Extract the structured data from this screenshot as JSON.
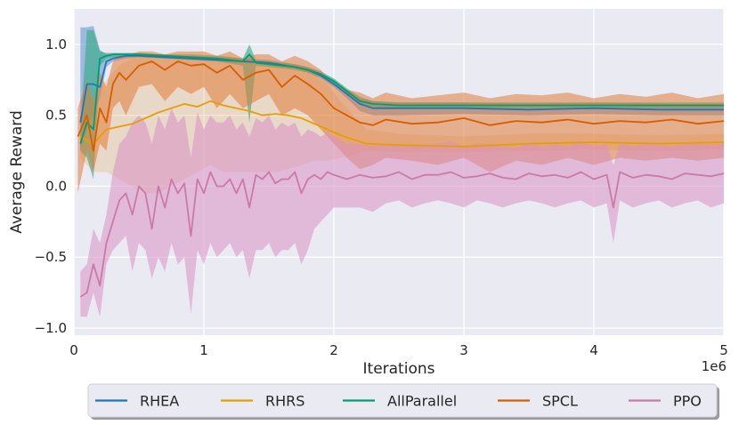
{
  "chart_data": {
    "type": "line",
    "title": "",
    "xlabel": "Iterations",
    "ylabel": "Average Reward",
    "x_offset_text": "1e6",
    "xlim": [
      0,
      5000000
    ],
    "ylim": [
      -1.05,
      1.25
    ],
    "xticks": [
      0,
      1000000,
      2000000,
      3000000,
      4000000,
      5000000
    ],
    "xtick_labels": [
      "0",
      "1",
      "2",
      "3",
      "4",
      "5"
    ],
    "yticks": [
      -1.0,
      -0.5,
      0.0,
      0.5,
      1.0
    ],
    "ytick_labels": [
      "−1.0",
      "−0.5",
      "0.0",
      "0.5",
      "1.0"
    ],
    "grid": true,
    "legend_position": "bottom-center",
    "series": [
      {
        "name": "RHEA",
        "color": "#1f77b4",
        "band_color": "#5b8fd0",
        "band_opacity": 0.55,
        "x": [
          50000,
          100000,
          150000,
          200000,
          250000,
          300000,
          400000,
          500000,
          700000,
          900000,
          1100000,
          1300000,
          1500000,
          1700000,
          1800000,
          1900000,
          2000000,
          2100000,
          2200000,
          2300000,
          2500000,
          3000000,
          3500000,
          4000000,
          4500000,
          5000000
        ],
        "values": [
          0.45,
          0.72,
          0.72,
          0.7,
          0.88,
          0.9,
          0.92,
          0.92,
          0.91,
          0.9,
          0.89,
          0.88,
          0.87,
          0.84,
          0.82,
          0.78,
          0.72,
          0.65,
          0.58,
          0.55,
          0.55,
          0.55,
          0.54,
          0.55,
          0.54,
          0.54
        ],
        "lower": [
          0.25,
          0.4,
          0.5,
          0.62,
          0.84,
          0.88,
          0.9,
          0.91,
          0.9,
          0.89,
          0.88,
          0.87,
          0.86,
          0.83,
          0.8,
          0.76,
          0.7,
          0.62,
          0.53,
          0.5,
          0.5,
          0.51,
          0.5,
          0.51,
          0.5,
          0.5
        ],
        "upper": [
          1.12,
          1.12,
          1.13,
          0.96,
          0.93,
          0.93,
          0.93,
          0.93,
          0.92,
          0.92,
          0.91,
          0.9,
          0.89,
          0.86,
          0.84,
          0.8,
          0.75,
          0.68,
          0.62,
          0.6,
          0.59,
          0.59,
          0.58,
          0.59,
          0.58,
          0.58
        ]
      },
      {
        "name": "RHRS",
        "color": "#e69f00",
        "band_color": "#e6b87a",
        "band_opacity": 0.35,
        "x": [
          50000,
          150000,
          250000,
          350000,
          450000,
          550000,
          650000,
          750000,
          850000,
          950000,
          1050000,
          1150000,
          1250000,
          1350000,
          1450000,
          1550000,
          1650000,
          1750000,
          1850000,
          1950000,
          2050000,
          2150000,
          2250000,
          2500000,
          3000000,
          3500000,
          4000000,
          4500000,
          5000000
        ],
        "values": [
          0.35,
          0.3,
          0.4,
          0.42,
          0.44,
          0.48,
          0.52,
          0.55,
          0.58,
          0.56,
          0.6,
          0.57,
          0.55,
          0.53,
          0.5,
          0.51,
          0.5,
          0.48,
          0.44,
          0.4,
          0.36,
          0.33,
          0.3,
          0.29,
          0.28,
          0.3,
          0.31,
          0.3,
          0.31
        ],
        "lower": [
          0.2,
          0.1,
          0.1,
          0.05,
          0.0,
          -0.05,
          -0.05,
          0.0,
          0.05,
          0.1,
          0.15,
          0.1,
          0.1,
          0.1,
          0.1,
          0.1,
          0.12,
          0.15,
          0.18,
          0.18,
          0.2,
          0.22,
          0.25,
          0.24,
          0.24,
          0.25,
          0.26,
          0.25,
          0.26
        ],
        "upper": [
          0.5,
          0.6,
          0.75,
          0.85,
          0.9,
          0.93,
          0.92,
          0.92,
          0.92,
          0.92,
          0.92,
          0.92,
          0.91,
          0.9,
          0.89,
          0.88,
          0.86,
          0.84,
          0.78,
          0.72,
          0.6,
          0.5,
          0.4,
          0.37,
          0.35,
          0.37,
          0.37,
          0.36,
          0.37
        ]
      },
      {
        "name": "AllParallel",
        "color": "#009e73",
        "band_color": "#33aa80",
        "band_opacity": 0.6,
        "x": [
          50000,
          100000,
          150000,
          200000,
          250000,
          300000,
          400000,
          500000,
          700000,
          900000,
          1100000,
          1300000,
          1350000,
          1400000,
          1500000,
          1700000,
          1800000,
          1900000,
          2000000,
          2100000,
          2200000,
          2300000,
          2500000,
          3000000,
          3500000,
          4000000,
          4500000,
          5000000
        ],
        "values": [
          0.3,
          0.45,
          0.4,
          0.9,
          0.92,
          0.93,
          0.93,
          0.93,
          0.92,
          0.91,
          0.9,
          0.88,
          0.93,
          0.87,
          0.86,
          0.84,
          0.82,
          0.79,
          0.74,
          0.67,
          0.6,
          0.58,
          0.57,
          0.57,
          0.57,
          0.57,
          0.57,
          0.57
        ],
        "lower": [
          0.25,
          0.2,
          0.05,
          0.85,
          0.9,
          0.91,
          0.91,
          0.91,
          0.9,
          0.89,
          0.88,
          0.85,
          0.45,
          0.85,
          0.84,
          0.82,
          0.8,
          0.77,
          0.72,
          0.65,
          0.58,
          0.56,
          0.55,
          0.55,
          0.55,
          0.55,
          0.55,
          0.55
        ],
        "upper": [
          0.4,
          1.1,
          1.1,
          0.95,
          0.94,
          0.94,
          0.94,
          0.94,
          0.93,
          0.93,
          0.92,
          0.9,
          1.0,
          0.89,
          0.88,
          0.86,
          0.84,
          0.81,
          0.76,
          0.69,
          0.63,
          0.6,
          0.59,
          0.59,
          0.59,
          0.59,
          0.59,
          0.59
        ]
      },
      {
        "name": "SPCL",
        "color": "#d55e00",
        "band_color": "#e07b39",
        "band_opacity": 0.55,
        "x": [
          30000,
          100000,
          150000,
          200000,
          250000,
          300000,
          350000,
          400000,
          500000,
          600000,
          700000,
          800000,
          900000,
          1000000,
          1100000,
          1200000,
          1300000,
          1400000,
          1500000,
          1600000,
          1700000,
          1800000,
          1900000,
          2000000,
          2100000,
          2200000,
          2300000,
          2400000,
          2600000,
          2800000,
          3000000,
          3200000,
          3400000,
          3600000,
          3800000,
          4000000,
          4200000,
          4400000,
          4600000,
          4800000,
          5000000
        ],
        "values": [
          0.35,
          0.5,
          0.25,
          0.55,
          0.45,
          0.72,
          0.8,
          0.75,
          0.85,
          0.88,
          0.82,
          0.88,
          0.85,
          0.86,
          0.8,
          0.85,
          0.75,
          0.8,
          0.82,
          0.7,
          0.78,
          0.72,
          0.65,
          0.55,
          0.5,
          0.45,
          0.43,
          0.47,
          0.44,
          0.45,
          0.48,
          0.43,
          0.46,
          0.45,
          0.47,
          0.44,
          0.46,
          0.45,
          0.47,
          0.44,
          0.46
        ],
        "lower": [
          -0.05,
          0.25,
          0.1,
          0.3,
          0.25,
          0.55,
          0.6,
          0.5,
          0.7,
          0.72,
          0.6,
          0.7,
          0.65,
          0.7,
          0.55,
          0.65,
          0.55,
          0.6,
          0.65,
          0.5,
          0.55,
          0.5,
          0.4,
          0.3,
          0.2,
          0.12,
          0.15,
          0.2,
          0.18,
          0.15,
          0.2,
          0.1,
          0.18,
          0.15,
          0.2,
          0.15,
          0.2,
          0.18,
          0.2,
          0.18,
          0.2
        ],
        "upper": [
          0.55,
          0.75,
          0.6,
          0.8,
          0.7,
          0.88,
          0.93,
          0.92,
          0.95,
          0.95,
          0.93,
          0.95,
          0.95,
          0.95,
          0.92,
          0.95,
          0.9,
          0.93,
          0.93,
          0.88,
          0.92,
          0.88,
          0.82,
          0.72,
          0.68,
          0.66,
          0.62,
          0.66,
          0.62,
          0.64,
          0.66,
          0.62,
          0.65,
          0.64,
          0.66,
          0.62,
          0.65,
          0.63,
          0.66,
          0.62,
          0.65
        ]
      },
      {
        "name": "PPO",
        "color": "#cc79a7",
        "band_color": "#d88fc4",
        "band_opacity": 0.55,
        "x": [
          50000,
          100000,
          150000,
          200000,
          250000,
          300000,
          350000,
          400000,
          450000,
          500000,
          550000,
          600000,
          650000,
          700000,
          750000,
          800000,
          850000,
          900000,
          950000,
          1000000,
          1050000,
          1100000,
          1150000,
          1200000,
          1250000,
          1300000,
          1350000,
          1400000,
          1450000,
          1500000,
          1550000,
          1600000,
          1650000,
          1700000,
          1750000,
          1800000,
          1850000,
          1900000,
          1950000,
          2000000,
          2100000,
          2200000,
          2300000,
          2400000,
          2500000,
          2600000,
          2700000,
          2800000,
          2900000,
          3000000,
          3100000,
          3200000,
          3300000,
          3400000,
          3500000,
          3600000,
          3700000,
          3800000,
          3900000,
          4000000,
          4100000,
          4150000,
          4200000,
          4300000,
          4400000,
          4500000,
          4600000,
          4700000,
          4800000,
          4900000,
          5000000
        ],
        "values": [
          -0.78,
          -0.75,
          -0.55,
          -0.7,
          -0.4,
          -0.25,
          -0.1,
          -0.05,
          -0.2,
          0.0,
          -0.05,
          -0.3,
          0.0,
          -0.15,
          0.05,
          -0.05,
          0.02,
          -0.35,
          0.05,
          -0.05,
          0.1,
          0.0,
          0.0,
          0.05,
          -0.05,
          0.05,
          -0.15,
          0.08,
          0.05,
          0.1,
          0.02,
          0.05,
          0.05,
          0.1,
          -0.05,
          0.05,
          0.08,
          0.05,
          0.1,
          0.08,
          0.05,
          0.08,
          0.06,
          0.07,
          0.1,
          0.05,
          0.08,
          0.08,
          0.1,
          0.06,
          0.07,
          0.09,
          0.06,
          0.05,
          0.09,
          0.07,
          0.08,
          0.06,
          0.1,
          0.05,
          0.08,
          -0.15,
          0.1,
          0.06,
          0.08,
          0.07,
          0.05,
          0.09,
          0.08,
          0.07,
          0.09
        ],
        "lower": [
          -0.92,
          -0.92,
          -0.75,
          -0.92,
          -0.55,
          -0.45,
          -0.4,
          -0.35,
          -0.6,
          -0.4,
          -0.45,
          -0.65,
          -0.5,
          -0.6,
          -0.4,
          -0.55,
          -0.5,
          -0.9,
          -0.45,
          -0.55,
          -0.4,
          -0.5,
          -0.45,
          -0.4,
          -0.5,
          -0.45,
          -0.65,
          -0.45,
          -0.45,
          -0.4,
          -0.5,
          -0.45,
          -0.45,
          -0.4,
          -0.55,
          -0.45,
          -0.3,
          -0.25,
          -0.2,
          -0.15,
          -0.15,
          -0.15,
          -0.18,
          -0.12,
          -0.1,
          -0.15,
          -0.12,
          -0.1,
          -0.12,
          -0.15,
          -0.1,
          -0.12,
          -0.15,
          -0.12,
          -0.1,
          -0.12,
          -0.15,
          -0.12,
          -0.1,
          -0.15,
          -0.12,
          -0.4,
          -0.1,
          -0.15,
          -0.12,
          -0.1,
          -0.15,
          -0.12,
          -0.1,
          -0.15,
          -0.12
        ],
        "upper": [
          -0.6,
          -0.55,
          -0.3,
          -0.4,
          -0.2,
          0.1,
          0.3,
          0.35,
          0.45,
          0.5,
          0.45,
          0.3,
          0.5,
          0.4,
          0.55,
          0.45,
          0.5,
          0.2,
          0.52,
          0.4,
          0.5,
          0.45,
          0.45,
          0.5,
          0.4,
          0.45,
          0.35,
          0.48,
          0.45,
          0.5,
          0.4,
          0.45,
          0.42,
          0.45,
          0.35,
          0.4,
          0.38,
          0.35,
          0.38,
          0.35,
          0.3,
          0.3,
          0.28,
          0.3,
          0.3,
          0.28,
          0.3,
          0.3,
          0.32,
          0.28,
          0.3,
          0.3,
          0.28,
          0.27,
          0.3,
          0.28,
          0.3,
          0.28,
          0.32,
          0.28,
          0.3,
          0.15,
          0.3,
          0.28,
          0.3,
          0.29,
          0.28,
          0.3,
          0.3,
          0.29,
          0.3
        ]
      }
    ]
  }
}
